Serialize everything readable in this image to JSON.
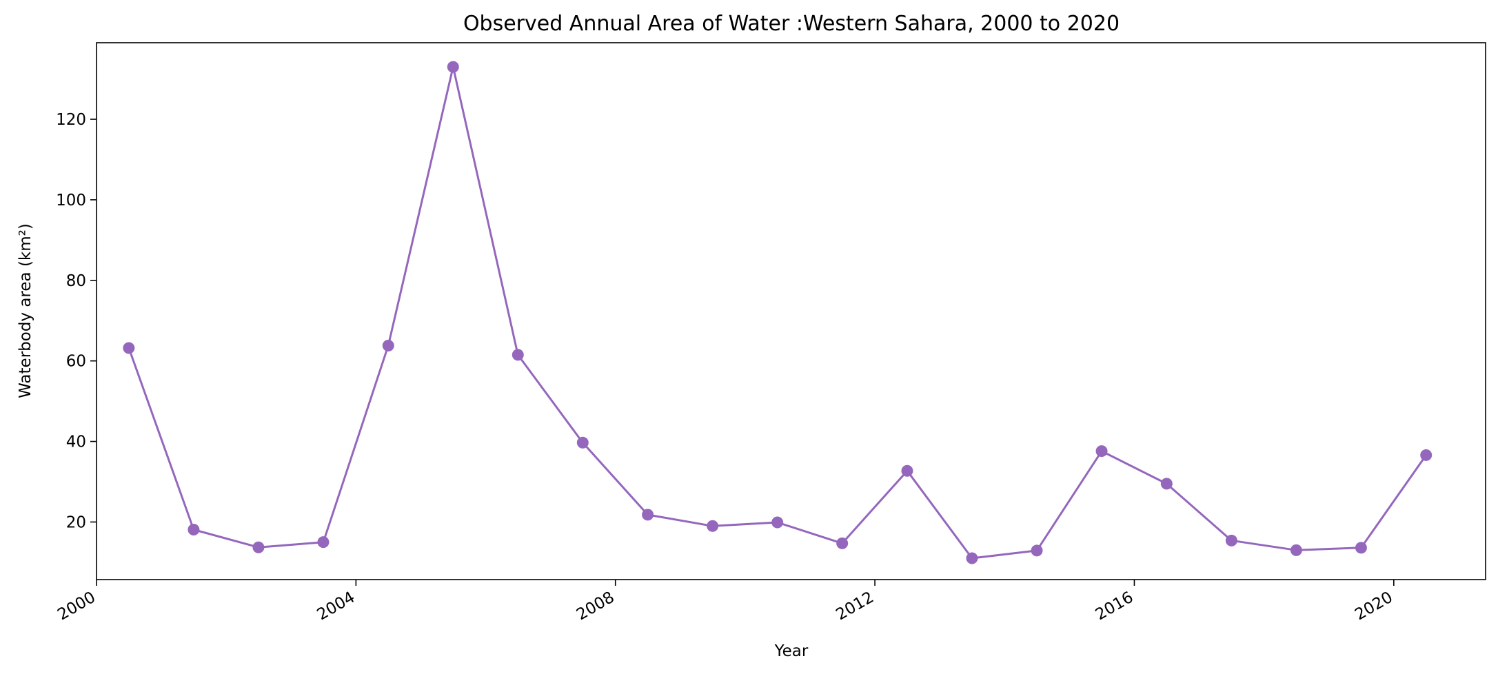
{
  "chart_data": {
    "type": "line",
    "title": "Observed Annual Area of Water :Western Sahara, 2000 to 2020",
    "xlabel": "Year",
    "ylabel": "Waterbody area (km²)",
    "x": [
      "2000-07-01",
      "2001-07-01",
      "2002-07-01",
      "2003-07-01",
      "2004-07-01",
      "2005-07-01",
      "2006-07-01",
      "2007-07-01",
      "2008-07-01",
      "2009-07-01",
      "2010-07-01",
      "2011-07-01",
      "2012-07-01",
      "2013-07-01",
      "2014-07-01",
      "2015-07-01",
      "2016-07-01",
      "2017-07-01",
      "2018-07-01",
      "2019-07-01",
      "2020-07-01"
    ],
    "series": [
      {
        "values": [
          63.2,
          18.1,
          13.7,
          15.0,
          63.8,
          133.0,
          61.5,
          39.7,
          21.8,
          19.0,
          19.9,
          14.7,
          32.7,
          11.0,
          12.9,
          37.6,
          29.5,
          15.4,
          13.0,
          13.6,
          36.6
        ],
        "color": "#9467bd"
      }
    ],
    "xlim": [
      "2000-01-01",
      "2021-06-01"
    ],
    "ylim": [
      5.7,
      139.0
    ],
    "x_ticks": [
      "2000",
      "2004",
      "2008",
      "2012",
      "2016",
      "2020"
    ],
    "y_ticks": [
      20,
      40,
      60,
      80,
      100,
      120
    ],
    "grid": false,
    "legend": "none"
  }
}
